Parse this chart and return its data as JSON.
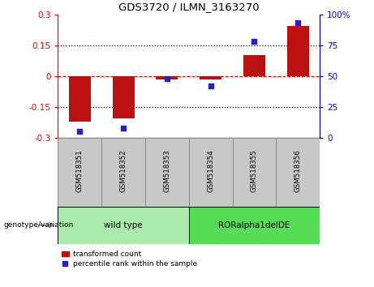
{
  "title": "GDS3720 / ILMN_3163270",
  "categories": [
    "GSM518351",
    "GSM518352",
    "GSM518353",
    "GSM518354",
    "GSM518355",
    "GSM518356"
  ],
  "bar_values": [
    -0.22,
    -0.205,
    -0.015,
    -0.015,
    0.1,
    0.245
  ],
  "point_values": [
    5,
    8,
    48,
    42,
    78,
    93
  ],
  "bar_color": "#BB1111",
  "point_color": "#2222CC",
  "left_ylim": [
    -0.3,
    0.3
  ],
  "right_ylim": [
    0,
    100
  ],
  "left_yticks": [
    -0.3,
    -0.15,
    0,
    0.15,
    0.3
  ],
  "right_yticks": [
    0,
    25,
    50,
    75,
    100
  ],
  "left_yticklabels": [
    "-0.3",
    "-0.15",
    "0",
    "0.15",
    "0.3"
  ],
  "right_yticklabels": [
    "0",
    "25",
    "50",
    "75",
    "100%"
  ],
  "hlines_dotted": [
    -0.15,
    0.15
  ],
  "hline_zero": 0,
  "group1_label": "wild type",
  "group2_label": "RORalpha1delDE",
  "group1_indices": [
    0,
    1,
    2
  ],
  "group2_indices": [
    3,
    4,
    5
  ],
  "group1_color": "#AAEAAA",
  "group2_color": "#55DD55",
  "genotype_label": "genotype/variation",
  "legend_bar_label": "transformed count",
  "legend_point_label": "percentile rank within the sample",
  "bar_width": 0.5,
  "label_bg_color": "#C8C8C8",
  "label_border_color": "#888888"
}
